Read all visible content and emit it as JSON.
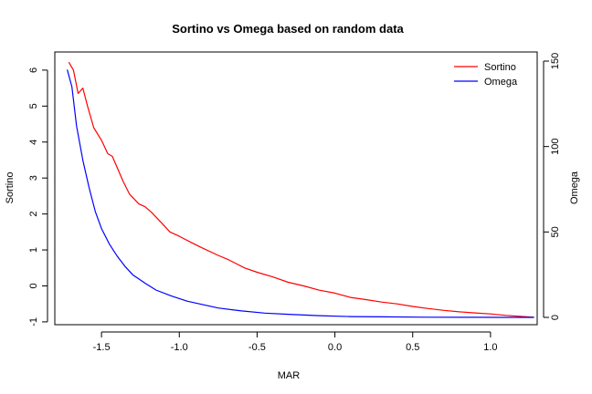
{
  "chart_data": {
    "type": "line",
    "title": "Sortino vs Omega  based on random data",
    "xlabel": "MAR",
    "ylabel_left": "Sortino",
    "ylabel_right": "Omega",
    "xlim": [
      -1.8,
      1.3
    ],
    "ylim_left": [
      -1,
      6.5
    ],
    "ylim_right": [
      -5,
      153
    ],
    "x_ticks": [
      -1.5,
      -1.0,
      -0.5,
      0.0,
      0.5,
      1.0
    ],
    "x_tick_labels": [
      "-1.5",
      "-1.0",
      "-0.5",
      "0.0",
      "0.5",
      "1.0"
    ],
    "y_left_ticks": [
      -1,
      0,
      1,
      2,
      3,
      4,
      5,
      6
    ],
    "y_left_tick_labels": [
      "-1",
      "0",
      "1",
      "2",
      "3",
      "4",
      "5",
      "6"
    ],
    "y_right_ticks": [
      0,
      50,
      100,
      150
    ],
    "y_right_tick_labels": [
      "0",
      "50",
      "100",
      "150"
    ],
    "grid": false,
    "legend_position": "top-right",
    "series": [
      {
        "name": "Sortino",
        "axis": "left",
        "color": "#ff0000",
        "points": [
          [
            -1.71,
            6.22
          ],
          [
            -1.68,
            6.0
          ],
          [
            -1.65,
            5.35
          ],
          [
            -1.62,
            5.5
          ],
          [
            -1.59,
            5.0
          ],
          [
            -1.55,
            4.4
          ],
          [
            -1.5,
            4.05
          ],
          [
            -1.46,
            3.68
          ],
          [
            -1.43,
            3.6
          ],
          [
            -1.4,
            3.3
          ],
          [
            -1.36,
            2.9
          ],
          [
            -1.32,
            2.55
          ],
          [
            -1.26,
            2.28
          ],
          [
            -1.22,
            2.2
          ],
          [
            -1.18,
            2.05
          ],
          [
            -1.12,
            1.78
          ],
          [
            -1.06,
            1.5
          ],
          [
            -1.0,
            1.38
          ],
          [
            -0.92,
            1.2
          ],
          [
            -0.85,
            1.05
          ],
          [
            -0.75,
            0.85
          ],
          [
            -0.68,
            0.72
          ],
          [
            -0.58,
            0.5
          ],
          [
            -0.5,
            0.38
          ],
          [
            -0.4,
            0.25
          ],
          [
            -0.3,
            0.1
          ],
          [
            -0.2,
            0.0
          ],
          [
            -0.1,
            -0.12
          ],
          [
            0.0,
            -0.2
          ],
          [
            0.1,
            -0.32
          ],
          [
            0.2,
            -0.38
          ],
          [
            0.3,
            -0.45
          ],
          [
            0.4,
            -0.5
          ],
          [
            0.5,
            -0.57
          ],
          [
            0.6,
            -0.63
          ],
          [
            0.7,
            -0.68
          ],
          [
            0.8,
            -0.72
          ],
          [
            0.9,
            -0.75
          ],
          [
            1.0,
            -0.78
          ],
          [
            1.1,
            -0.82
          ],
          [
            1.2,
            -0.85
          ],
          [
            1.28,
            -0.87
          ]
        ]
      },
      {
        "name": "Omega",
        "axis": "right",
        "color": "#0000ff",
        "points": [
          [
            -1.72,
            145
          ],
          [
            -1.69,
            135
          ],
          [
            -1.66,
            112
          ],
          [
            -1.62,
            92
          ],
          [
            -1.58,
            76
          ],
          [
            -1.54,
            62
          ],
          [
            -1.5,
            52
          ],
          [
            -1.45,
            43
          ],
          [
            -1.4,
            36
          ],
          [
            -1.35,
            30
          ],
          [
            -1.3,
            25
          ],
          [
            -1.22,
            20
          ],
          [
            -1.15,
            16
          ],
          [
            -1.05,
            12.5
          ],
          [
            -0.95,
            9.5
          ],
          [
            -0.85,
            7.5
          ],
          [
            -0.75,
            5.5
          ],
          [
            -0.6,
            3.8
          ],
          [
            -0.45,
            2.5
          ],
          [
            -0.3,
            1.8
          ],
          [
            -0.1,
            1.0
          ],
          [
            0.1,
            0.5
          ],
          [
            0.3,
            0.3
          ],
          [
            0.6,
            0.1
          ],
          [
            0.9,
            0.05
          ],
          [
            1.1,
            0.02
          ],
          [
            1.28,
            0.0
          ]
        ]
      }
    ]
  }
}
